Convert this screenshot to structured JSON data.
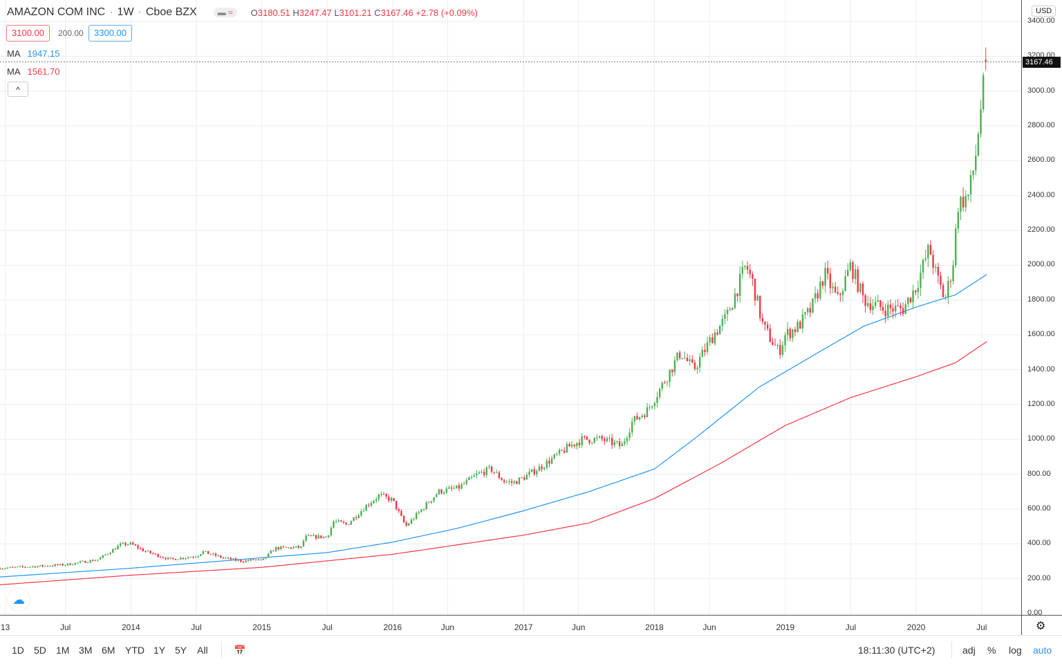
{
  "header": {
    "symbol": "AMAZON COM INC",
    "interval": "1W",
    "exchange": "Cboe BZX",
    "sep": "·",
    "open_label": "O",
    "open": "3180.51",
    "high_label": "H",
    "high": "3247.47",
    "low_label": "L",
    "low": "3101.21",
    "close_label": "C",
    "close": "3167.46",
    "change": "+2.78 (+0.09%)"
  },
  "range_tool": {
    "low": "3100.00",
    "spread": "200.00",
    "high": "3300.00"
  },
  "indicators": [
    {
      "label": "MA",
      "value": "1947.15",
      "color": "#2196f3"
    },
    {
      "label": "MA",
      "value": "1561.70",
      "color": "#f23645"
    }
  ],
  "currency": "USD",
  "last_price": "3167.46",
  "colors": {
    "up": "#4caf50",
    "down": "#f23645",
    "grid": "#e8eef5"
  },
  "bottom": {
    "ranges": [
      "1D",
      "5D",
      "1M",
      "3M",
      "6M",
      "YTD",
      "1Y",
      "5Y",
      "All"
    ],
    "time": "18:11:30 (UTC+2)",
    "adj": "adj",
    "pct": "%",
    "log": "log",
    "auto": "auto"
  },
  "chart_data": {
    "type": "candlestick",
    "ylim": [
      0,
      3400
    ],
    "yticks": [
      "3400.00",
      "3200.00",
      "3000.00",
      "2800.00",
      "2600.00",
      "2400.00",
      "2200.00",
      "2000.00",
      "1800.00",
      "1600.00",
      "1400.00",
      "1200.00",
      "1000.00",
      "800.00",
      "600.00",
      "400.00",
      "200.00",
      "0.00"
    ],
    "xticks": [
      [
        "13",
        2013.04
      ],
      [
        "Jul",
        2013.5
      ],
      [
        "2014",
        2014.0
      ],
      [
        "Jul",
        2014.5
      ],
      [
        "2015",
        2015.0
      ],
      [
        "Jul",
        2015.5
      ],
      [
        "2016",
        2016.0
      ],
      [
        "Jun",
        2016.42
      ],
      [
        "2017",
        2017.0
      ],
      [
        "Jun",
        2017.42
      ],
      [
        "2018",
        2018.0
      ],
      [
        "Jun",
        2018.42
      ],
      [
        "2019",
        2019.0
      ],
      [
        "Jul",
        2019.5
      ],
      [
        "2020",
        2020.0
      ],
      [
        "Jul",
        2020.5
      ]
    ],
    "close_approx": [
      [
        2013.0,
        260
      ],
      [
        2013.5,
        280
      ],
      [
        2013.75,
        310
      ],
      [
        2013.92,
        395
      ],
      [
        2014.0,
        400
      ],
      [
        2014.1,
        360
      ],
      [
        2014.3,
        310
      ],
      [
        2014.5,
        330
      ],
      [
        2014.55,
        355
      ],
      [
        2014.7,
        320
      ],
      [
        2014.85,
        300
      ],
      [
        2014.95,
        310
      ],
      [
        2015.0,
        300
      ],
      [
        2015.1,
        375
      ],
      [
        2015.3,
        380
      ],
      [
        2015.33,
        440
      ],
      [
        2015.5,
        440
      ],
      [
        2015.55,
        530
      ],
      [
        2015.65,
        510
      ],
      [
        2015.8,
        620
      ],
      [
        2015.9,
        680
      ],
      [
        2016.0,
        650
      ],
      [
        2016.05,
        575
      ],
      [
        2016.1,
        500
      ],
      [
        2016.2,
        580
      ],
      [
        2016.35,
        700
      ],
      [
        2016.5,
        720
      ],
      [
        2016.65,
        800
      ],
      [
        2016.75,
        830
      ],
      [
        2016.85,
        760
      ],
      [
        2016.92,
        750
      ],
      [
        2017.0,
        780
      ],
      [
        2017.15,
        850
      ],
      [
        2017.35,
        960
      ],
      [
        2017.45,
        1000
      ],
      [
        2017.6,
        1000
      ],
      [
        2017.75,
        960
      ],
      [
        2017.83,
        1100
      ],
      [
        2017.95,
        1170
      ],
      [
        2018.05,
        1300
      ],
      [
        2018.2,
        1500
      ],
      [
        2018.3,
        1400
      ],
      [
        2018.45,
        1600
      ],
      [
        2018.55,
        1700
      ],
      [
        2018.65,
        1900
      ],
      [
        2018.7,
        2000
      ],
      [
        2018.75,
        1900
      ],
      [
        2018.83,
        1650
      ],
      [
        2018.95,
        1500
      ],
      [
        2019.0,
        1600
      ],
      [
        2019.1,
        1650
      ],
      [
        2019.2,
        1750
      ],
      [
        2019.3,
        1950
      ],
      [
        2019.4,
        1800
      ],
      [
        2019.5,
        2000
      ],
      [
        2019.6,
        1800
      ],
      [
        2019.75,
        1750
      ],
      [
        2019.9,
        1750
      ],
      [
        2020.0,
        1880
      ],
      [
        2020.1,
        2100
      ],
      [
        2020.15,
        1950
      ],
      [
        2020.22,
        1800
      ],
      [
        2020.28,
        2000
      ],
      [
        2020.32,
        2350
      ],
      [
        2020.4,
        2400
      ],
      [
        2020.45,
        2600
      ],
      [
        2020.5,
        2950
      ],
      [
        2020.54,
        3167.46
      ]
    ],
    "series": [
      {
        "name": "MA",
        "color": "#2196f3",
        "values": [
          [
            2013.0,
            210
          ],
          [
            2014.0,
            260
          ],
          [
            2015.0,
            320
          ],
          [
            2015.5,
            350
          ],
          [
            2016.0,
            410
          ],
          [
            2016.5,
            490
          ],
          [
            2017.0,
            590
          ],
          [
            2017.5,
            700
          ],
          [
            2018.0,
            830
          ],
          [
            2018.3,
            1000
          ],
          [
            2018.8,
            1300
          ],
          [
            2019.3,
            1520
          ],
          [
            2019.6,
            1650
          ],
          [
            2020.0,
            1760
          ],
          [
            2020.3,
            1830
          ],
          [
            2020.54,
            1947.15
          ]
        ]
      },
      {
        "name": "MA",
        "color": "#f23645",
        "values": [
          [
            2013.0,
            165
          ],
          [
            2014.0,
            220
          ],
          [
            2015.0,
            265
          ],
          [
            2016.0,
            340
          ],
          [
            2017.0,
            450
          ],
          [
            2017.5,
            520
          ],
          [
            2018.0,
            660
          ],
          [
            2018.5,
            860
          ],
          [
            2019.0,
            1080
          ],
          [
            2019.5,
            1240
          ],
          [
            2020.0,
            1360
          ],
          [
            2020.3,
            1440
          ],
          [
            2020.54,
            1561.7
          ]
        ]
      }
    ]
  }
}
